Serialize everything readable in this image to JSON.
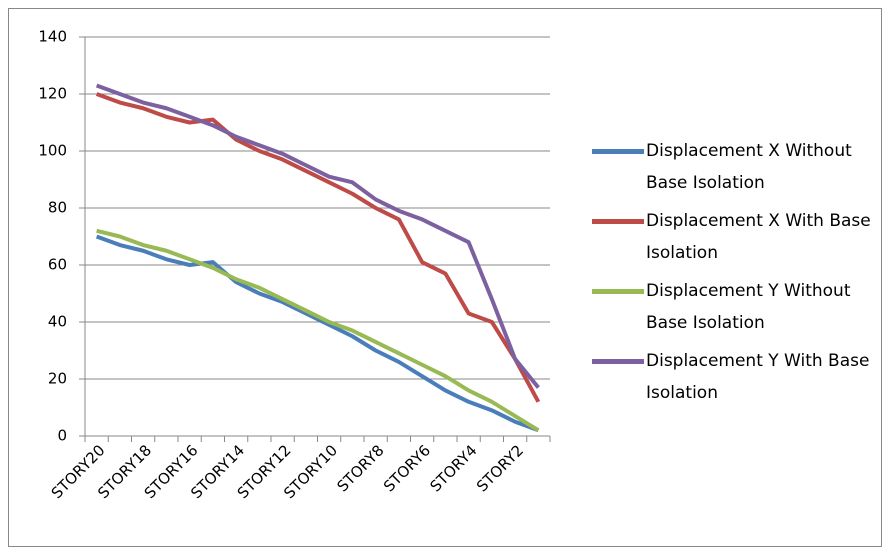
{
  "chart_data": {
    "type": "line",
    "categories": [
      "STORY20",
      null,
      "STORY18",
      null,
      "STORY16",
      null,
      "STORY14",
      null,
      "STORY12",
      null,
      "STORY10",
      null,
      "STORY8",
      null,
      "STORY6",
      null,
      "STORY4",
      null,
      "STORY2",
      null
    ],
    "series": [
      {
        "name": "Displacement X Without Base Isolation",
        "color": "#4a7ebb",
        "values": [
          70,
          67,
          65,
          62,
          60,
          61,
          54,
          50,
          47,
          43,
          39,
          35,
          30,
          26,
          21,
          16,
          12,
          9,
          5,
          2
        ]
      },
      {
        "name": "Displacement X With Base Isolation",
        "color": "#be4b48",
        "values": [
          120,
          117,
          115,
          112,
          110,
          111,
          104,
          100,
          97,
          93,
          89,
          85,
          80,
          76,
          61,
          57,
          43,
          40,
          27,
          12
        ]
      },
      {
        "name": "Displacement Y Without Base Isolation",
        "color": "#98b954",
        "values": [
          72,
          70,
          67,
          65,
          62,
          59,
          55,
          52,
          48,
          44,
          40,
          37,
          33,
          29,
          25,
          21,
          16,
          12,
          7,
          2
        ]
      },
      {
        "name": "Displacement Y With Base Isolation",
        "color": "#7d60a0",
        "values": [
          123,
          120,
          117,
          115,
          112,
          109,
          105,
          102,
          99,
          95,
          91,
          89,
          83,
          79,
          76,
          72,
          68,
          48,
          27,
          17
        ]
      }
    ],
    "ylim": [
      0,
      140
    ],
    "yticks": [
      0,
      20,
      40,
      60,
      80,
      100,
      120,
      140
    ],
    "grid": true,
    "legend": "right"
  }
}
